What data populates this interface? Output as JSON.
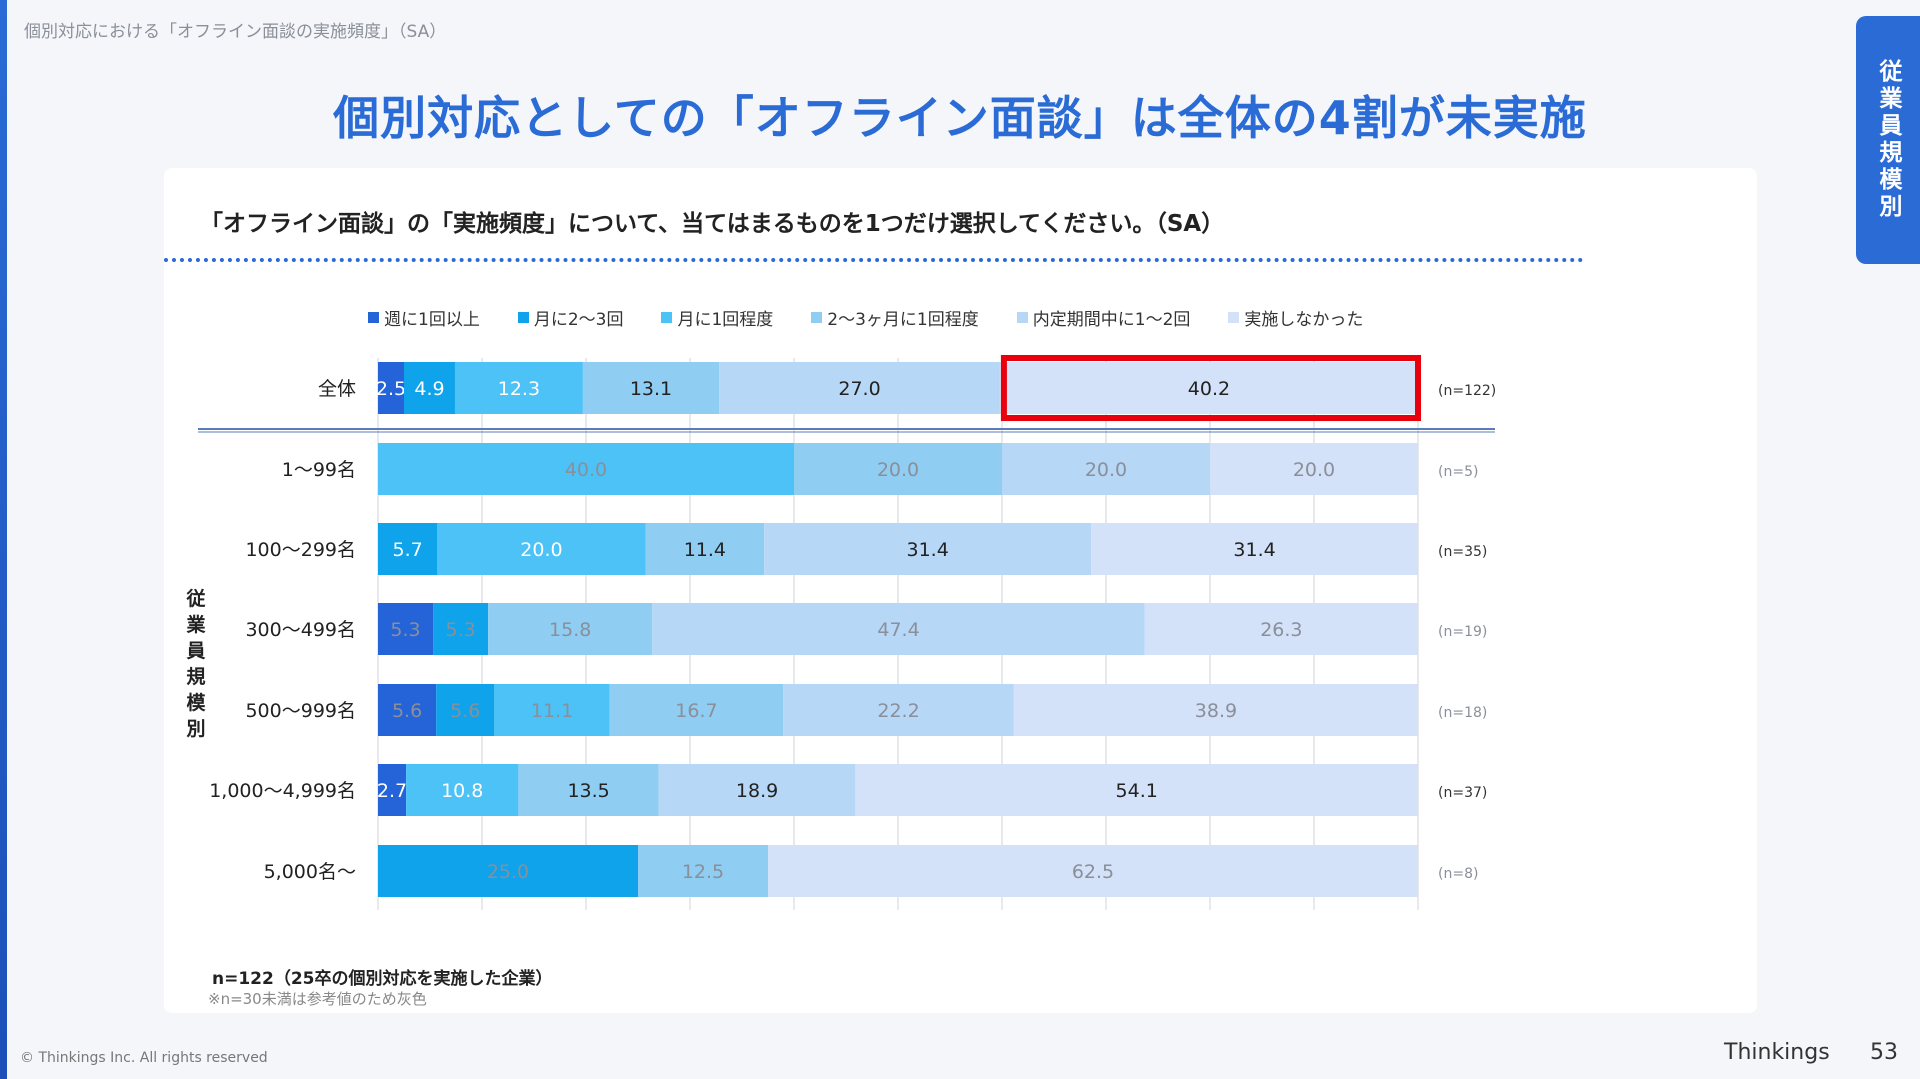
{
  "breadcrumb": "個別対応における「オフライン面談の実施頻度」（SA）",
  "headline": "個別対応としての「オフライン面談」は全体の4割が未実施",
  "side_tab": "従業員規模別",
  "question": "「オフライン面談」の「実施頻度」について、当てはまるものを1つだけ選択してください。（SA）",
  "footnote_main": "n=122（25卒の個別対応を実施した企業）",
  "footnote_sub": "※n=30未満は参考値のため灰色",
  "copyright": "© Thinkings Inc. All rights reserved",
  "brand": "Thinkings",
  "page_number": "53",
  "colors": {
    "accent": "#2a6bd6",
    "highlight": "#e8000d",
    "series": [
      "#2563d8",
      "#0ea3ea",
      "#4cc2f7",
      "#8fcdf3",
      "#b7d7f6",
      "#d3e2f8"
    ]
  },
  "chart_data": {
    "type": "bar",
    "orientation": "horizontal-stacked-100",
    "axis_group_label": "従業員規模別",
    "series_names": [
      "週に1回以上",
      "月に2〜3回",
      "月に1回程度",
      "2〜3ヶ月に1回程度",
      "内定期間中に1〜2回",
      "実施しなかった"
    ],
    "rows": [
      {
        "category": "全体",
        "n_label": "(n=122)",
        "values": [
          2.5,
          4.9,
          12.3,
          13.1,
          27.0,
          40.2
        ],
        "labels": [
          "2.5",
          "4.9",
          "12.3",
          "13.1",
          "27.0",
          "40.2"
        ],
        "reference_only": false,
        "highlight_series_index": 5
      },
      {
        "category": "1〜99名",
        "n_label": "(n=5)",
        "values": [
          0,
          0,
          40.0,
          20.0,
          20.0,
          20.0
        ],
        "labels": [
          "",
          "",
          "40.0",
          "20.0",
          "20.0",
          "20.0"
        ],
        "reference_only": true
      },
      {
        "category": "100〜299名",
        "n_label": "(n=35)",
        "values": [
          0,
          5.7,
          20.0,
          11.4,
          31.4,
          31.4
        ],
        "labels": [
          "",
          "5.7",
          "20.0",
          "11.4",
          "31.4",
          "31.4"
        ],
        "reference_only": false
      },
      {
        "category": "300〜499名",
        "n_label": "(n=19)",
        "values": [
          5.3,
          5.3,
          0,
          15.8,
          47.4,
          26.3
        ],
        "labels": [
          "5.3",
          "5.3",
          "",
          "15.8",
          "47.4",
          "26.3"
        ],
        "reference_only": true
      },
      {
        "category": "500〜999名",
        "n_label": "(n=18)",
        "values": [
          5.6,
          5.6,
          11.1,
          16.7,
          22.2,
          38.9
        ],
        "labels": [
          "5.6",
          "5.6",
          "11.1",
          "16.7",
          "22.2",
          "38.9"
        ],
        "reference_only": true
      },
      {
        "category": "1,000〜4,999名",
        "n_label": "(n=37)",
        "values": [
          2.7,
          0,
          10.8,
          13.5,
          18.9,
          54.1
        ],
        "labels": [
          "2.7",
          "",
          "10.8",
          "13.5",
          "18.9",
          "54.1"
        ],
        "reference_only": false
      },
      {
        "category": "5,000名〜",
        "n_label": "(n=8)",
        "values": [
          0,
          25.0,
          0,
          12.5,
          0,
          62.5
        ],
        "labels": [
          "",
          "25.0",
          "",
          "12.5",
          "",
          "62.5"
        ],
        "reference_only": true
      }
    ],
    "xlim": [
      0,
      100
    ],
    "grid": true,
    "legend_position": "top"
  }
}
